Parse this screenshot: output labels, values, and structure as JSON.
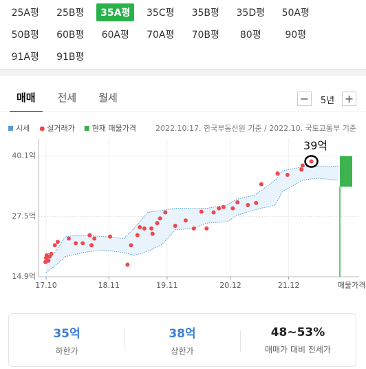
{
  "size_tabs": [
    "25A평",
    "25B평",
    "35A평",
    "35C평",
    "35B평",
    "35D평",
    "50A평",
    "50B평",
    "60B평",
    "60A평",
    "70A평",
    "70B평",
    "80평",
    "90평",
    "91A평",
    "91B평"
  ],
  "selected_size": 2,
  "chart_tabs": [
    "매매",
    "전세",
    "월세"
  ],
  "selected_chart_tab": 0,
  "period": {
    "minus": "−",
    "label": "5년",
    "plus": "+"
  },
  "chart_data": {
    "type": "scatter",
    "source": "2022.10.17. 한국부동산원 기준 / 2022.10. 국토교통부 기준",
    "annotation": "39억",
    "listing_label": "매물가격",
    "xlim": [
      2017.62,
      2022.8
    ],
    "ylim": [
      14.9,
      43.8
    ],
    "xticks": [
      {
        "value": 2017.75,
        "label": "17.10"
      },
      {
        "value": 2018.83,
        "label": "18.11"
      },
      {
        "value": 2019.83,
        "label": "19.11"
      },
      {
        "value": 2020.92,
        "label": "20.12"
      },
      {
        "value": 2021.92,
        "label": "21.12"
      }
    ],
    "yticks": [
      {
        "value": 14.9,
        "label": "14.9억"
      },
      {
        "value": 27.5,
        "label": "27.5억"
      },
      {
        "value": 40.1,
        "label": "40.1억"
      }
    ],
    "series": [
      {
        "name": "시세",
        "type": "band",
        "color": "#5b9bd5",
        "x": [
          2017.75,
          2017.9,
          2018.08,
          2018.38,
          2018.73,
          2019.09,
          2019.26,
          2019.5,
          2019.74,
          2019.97,
          2020.27,
          2020.51,
          2020.86,
          2021.04,
          2021.34,
          2021.69,
          2021.81,
          2022.16,
          2022.4,
          2022.78
        ],
        "high": [
          19.66,
          19.94,
          23.3,
          23.58,
          23.3,
          22.88,
          25.0,
          28.34,
          28.76,
          29.18,
          29.18,
          29.18,
          29.88,
          31.14,
          31.98,
          35.06,
          37.02,
          37.86,
          38.0,
          38.0
        ],
        "low": [
          15.74,
          17.14,
          19.1,
          19.94,
          20.5,
          19.94,
          19.38,
          20.22,
          21.62,
          24.7,
          24.98,
          26.1,
          26.38,
          27.78,
          28.9,
          29.88,
          32.68,
          35.06,
          35.48,
          35.06
        ]
      },
      {
        "name": "실거래가",
        "type": "points",
        "color": "#f0474f",
        "x": [
          2017.74,
          2017.75,
          2017.76,
          2017.79,
          2017.81,
          2017.84,
          2017.9,
          2017.95,
          2018.14,
          2018.26,
          2018.38,
          2018.5,
          2018.53,
          2018.58,
          2018.85,
          2019.15,
          2019.21,
          2019.32,
          2019.36,
          2019.44,
          2019.56,
          2019.58,
          2019.66,
          2019.71,
          2019.8,
          2019.97,
          2020.15,
          2020.29,
          2020.42,
          2020.51,
          2020.63,
          2020.72,
          2020.8,
          2020.96,
          2021.04,
          2021.22,
          2021.36,
          2021.45,
          2021.73,
          2021.9,
          2022.14,
          2022.16,
          2022.31
        ],
        "values": [
          17.98,
          18.82,
          19.38,
          18.26,
          19.1,
          19.66,
          21.48,
          22.18,
          22.88,
          21.9,
          21.9,
          23.58,
          21.48,
          22.88,
          23.3,
          17.42,
          21.48,
          23.58,
          25.26,
          24.98,
          24.98,
          23.86,
          26.1,
          27.08,
          28.34,
          25.54,
          26.66,
          24.98,
          28.48,
          24.98,
          28.34,
          29.18,
          29.46,
          29.18,
          30.44,
          29.88,
          30.3,
          34.22,
          36.46,
          36.18,
          37.3,
          38.14,
          38.98
        ]
      },
      {
        "name": "현재 매물가격",
        "type": "range",
        "color": "#3cb34f",
        "low": 33.7,
        "high": 40.1
      }
    ]
  },
  "summary": [
    {
      "value": "35억",
      "label": "하한가"
    },
    {
      "value": "38억",
      "label": "상한가"
    },
    {
      "value": "48~53%",
      "label": "매매가 대비 전세가"
    }
  ]
}
